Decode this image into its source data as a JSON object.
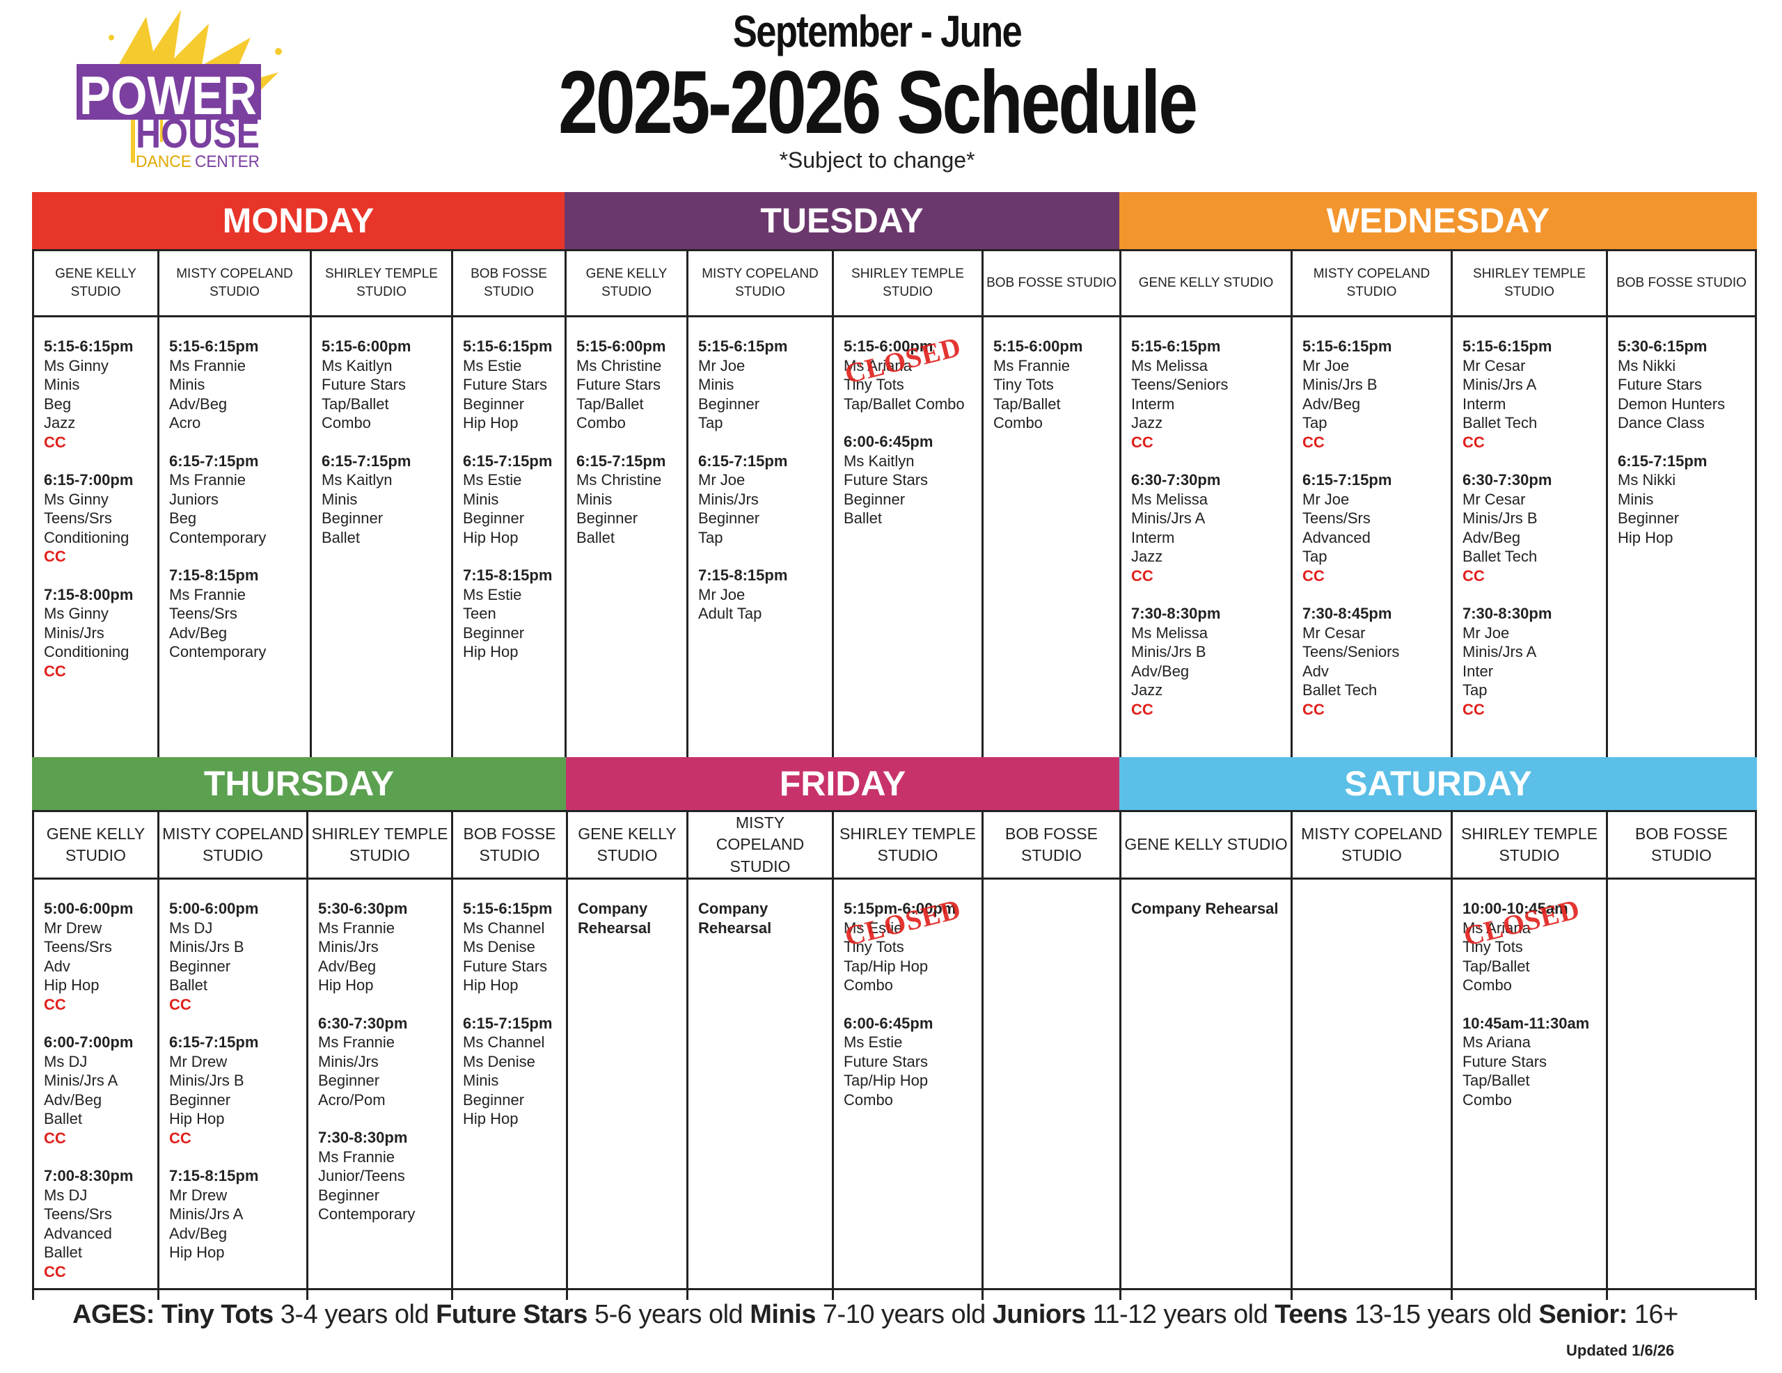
{
  "logo": {
    "line1": "POWER",
    "line2": "HOUSE",
    "line3": "DANCE CENTER",
    "colors": {
      "purple": "#7b3fa0",
      "yellow": "#f5c518"
    }
  },
  "header": {
    "season": "September - June",
    "title": "2025-2026 Schedule",
    "note": "*Subject to change*"
  },
  "closed_label": "CLOSED",
  "days": [
    {
      "name": "MONDAY",
      "color": "#e8352a",
      "row": 1,
      "studios": [
        {
          "header": "GENE KELLY STUDIO",
          "classes": [
            {
              "time": "5:15-6:15pm",
              "lines": [
                "Ms Ginny",
                "Minis",
                "Beg",
                "Jazz"
              ],
              "cc": true
            },
            {
              "time": "6:15-7:00pm",
              "lines": [
                "Ms Ginny",
                "Teens/Srs",
                "Conditioning"
              ],
              "cc": true
            },
            {
              "time": "7:15-8:00pm",
              "lines": [
                "Ms Ginny",
                "Minis/Jrs",
                "Conditioning"
              ],
              "cc": true
            }
          ]
        },
        {
          "header": "MISTY COPELAND STUDIO",
          "classes": [
            {
              "time": "5:15-6:15pm",
              "lines": [
                "Ms Frannie",
                "Minis",
                "Adv/Beg",
                "Acro"
              ]
            },
            {
              "time": "6:15-7:15pm",
              "lines": [
                "Ms Frannie",
                "Juniors",
                "Beg",
                "Contemporary"
              ]
            },
            {
              "time": "7:15-8:15pm",
              "lines": [
                "Ms Frannie",
                "Teens/Srs",
                "Adv/Beg",
                "Contemporary"
              ]
            }
          ]
        },
        {
          "header": "SHIRLEY TEMPLE STUDIO",
          "classes": [
            {
              "time": "5:15-6:00pm",
              "lines": [
                "Ms Kaitlyn",
                "Future Stars",
                "Tap/Ballet",
                "Combo"
              ]
            },
            {
              "time": "6:15-7:15pm",
              "lines": [
                "Ms Kaitlyn",
                "Minis",
                "Beginner",
                "Ballet"
              ]
            }
          ]
        },
        {
          "header": "BOB FOSSE STUDIO",
          "classes": [
            {
              "time": "5:15-6:15pm",
              "lines": [
                "Ms Estie",
                "Future Stars",
                "Beginner",
                "Hip Hop"
              ]
            },
            {
              "time": "6:15-7:15pm",
              "lines": [
                "Ms Estie",
                "Minis",
                "Beginner",
                "Hip Hop"
              ]
            },
            {
              "time": "7:15-8:15pm",
              "lines": [
                "Ms Estie",
                "Teen",
                "Beginner",
                "Hip Hop"
              ]
            }
          ]
        }
      ]
    },
    {
      "name": "TUESDAY",
      "color": "#6b386d",
      "row": 1,
      "studios": [
        {
          "header": "GENE KELLY STUDIO",
          "classes": [
            {
              "time": "5:15-6:00pm",
              "lines": [
                "Ms Christine",
                "Future Stars",
                "Tap/Ballet",
                "Combo"
              ]
            },
            {
              "time": "6:15-7:15pm",
              "lines": [
                "Ms Christine",
                "Minis",
                "Beginner",
                "Ballet"
              ]
            }
          ]
        },
        {
          "header": "MISTY COPELAND STUDIO",
          "classes": [
            {
              "time": "5:15-6:15pm",
              "lines": [
                "Mr Joe",
                "Minis",
                "Beginner",
                "Tap"
              ]
            },
            {
              "time": "6:15-7:15pm",
              "lines": [
                "Mr Joe",
                "Minis/Jrs",
                "Beginner",
                "Tap"
              ]
            },
            {
              "time": "7:15-8:15pm",
              "lines": [
                "Mr Joe",
                "Adult Tap"
              ]
            }
          ]
        },
        {
          "header": "SHIRLEY TEMPLE STUDIO",
          "classes": [
            {
              "time": "5:15-6:00pm",
              "lines": [
                "Ms Ariana",
                "Tiny Tots",
                "Tap/Ballet Combo"
              ],
              "closed": true
            },
            {
              "time": "6:00-6:45pm",
              "lines": [
                "Ms Kaitlyn",
                "Future Stars",
                "Beginner",
                "Ballet"
              ]
            }
          ]
        },
        {
          "header": "BOB FOSSE STUDIO",
          "classes": [
            {
              "time": "5:15-6:00pm",
              "lines": [
                "Ms Frannie",
                "Tiny Tots",
                "Tap/Ballet Combo"
              ]
            }
          ]
        }
      ]
    },
    {
      "name": "WEDNESDAY",
      "color": "#f3952d",
      "row": 1,
      "studios": [
        {
          "header": "GENE KELLY STUDIO",
          "classes": [
            {
              "time": "5:15-6:15pm",
              "lines": [
                "Ms Melissa",
                "Teens/Seniors",
                "Interm",
                "Jazz"
              ],
              "cc": true
            },
            {
              "time": "6:30-7:30pm",
              "lines": [
                "Ms Melissa",
                "Minis/Jrs A",
                "Interm",
                "Jazz"
              ],
              "cc": true
            },
            {
              "time": "7:30-8:30pm",
              "lines": [
                "Ms Melissa",
                "Minis/Jrs B",
                "Adv/Beg",
                "Jazz"
              ],
              "cc": true
            }
          ]
        },
        {
          "header": "MISTY COPELAND STUDIO",
          "classes": [
            {
              "time": "5:15-6:15pm",
              "lines": [
                "Mr Joe",
                "Minis/Jrs B",
                "Adv/Beg",
                "Tap"
              ],
              "cc": true
            },
            {
              "time": "6:15-7:15pm",
              "lines": [
                "Mr Joe",
                "Teens/Srs",
                "Advanced",
                "Tap"
              ],
              "cc": true
            },
            {
              "time": "7:30-8:45pm",
              "lines": [
                "Mr Cesar",
                "Teens/Seniors",
                "Adv",
                "Ballet Tech"
              ],
              "cc": true
            }
          ]
        },
        {
          "header": "SHIRLEY TEMPLE STUDIO",
          "classes": [
            {
              "time": "5:15-6:15pm",
              "lines": [
                "Mr Cesar",
                "Minis/Jrs A",
                "Interm",
                "Ballet Tech"
              ],
              "cc": true
            },
            {
              "time": "6:30-7:30pm",
              "lines": [
                "Mr Cesar",
                "Minis/Jrs B",
                "Adv/Beg",
                "Ballet Tech"
              ],
              "cc": true
            },
            {
              "time": "7:30-8:30pm",
              "lines": [
                "Mr Joe",
                "Minis/Jrs A",
                "Inter",
                "Tap"
              ],
              "cc": true
            }
          ]
        },
        {
          "header": "BOB FOSSE STUDIO",
          "classes": [
            {
              "time": "5:30-6:15pm",
              "lines": [
                "Ms Nikki",
                "Future Stars",
                "Demon Hunters",
                "Dance Class"
              ]
            },
            {
              "time": "6:15-7:15pm",
              "lines": [
                "Ms Nikki",
                "Minis",
                "Beginner",
                "Hip Hop"
              ]
            }
          ]
        }
      ]
    },
    {
      "name": "THURSDAY",
      "color": "#5ba150",
      "row": 2,
      "studios": [
        {
          "header": "GENE KELLY STUDIO",
          "classes": [
            {
              "time": "5:00-6:00pm",
              "lines": [
                "Mr Drew",
                "Teens/Srs",
                "Adv",
                "Hip Hop"
              ],
              "cc": true
            },
            {
              "time": "6:00-7:00pm",
              "lines": [
                "Ms DJ",
                "Minis/Jrs A",
                "Adv/Beg",
                "Ballet"
              ],
              "cc": true
            },
            {
              "time": "7:00-8:30pm",
              "lines": [
                "Ms DJ",
                "Teens/Srs",
                "Advanced",
                "Ballet"
              ],
              "cc": true
            }
          ]
        },
        {
          "header": "MISTY COPELAND STUDIO",
          "classes": [
            {
              "time": "5:00-6:00pm",
              "lines": [
                "Ms DJ",
                "Minis/Jrs B",
                "Beginner",
                "Ballet"
              ],
              "cc": true
            },
            {
              "time": "6:15-7:15pm",
              "lines": [
                "Mr Drew",
                "Minis/Jrs B",
                "Beginner",
                "Hip Hop"
              ],
              "cc": true
            },
            {
              "time": "7:15-8:15pm",
              "lines": [
                "Mr Drew",
                "Minis/Jrs A",
                "Adv/Beg",
                "Hip Hop"
              ]
            }
          ]
        },
        {
          "header": "SHIRLEY TEMPLE STUDIO",
          "classes": [
            {
              "time": "5:30-6:30pm",
              "lines": [
                "Ms Frannie",
                "Minis/Jrs",
                "Adv/Beg",
                "Hip Hop"
              ]
            },
            {
              "time": "6:30-7:30pm",
              "lines": [
                "Ms Frannie",
                "Minis/Jrs",
                "Beginner",
                "Acro/Pom"
              ]
            },
            {
              "time": "7:30-8:30pm",
              "lines": [
                "Ms Frannie",
                "Junior/Teens",
                "Beginner",
                "Contemporary"
              ]
            }
          ]
        },
        {
          "header": "BOB FOSSE STUDIO",
          "classes": [
            {
              "time": "5:15-6:15pm",
              "lines": [
                "Ms Channel",
                "Ms Denise",
                "Future Stars",
                "Hip Hop"
              ]
            },
            {
              "time": "6:15-7:15pm",
              "lines": [
                "Ms Channel",
                "Ms Denise",
                "Minis",
                "Beginner",
                "Hip Hop"
              ]
            }
          ]
        }
      ]
    },
    {
      "name": "FRIDAY",
      "color": "#c8326a",
      "row": 2,
      "studios": [
        {
          "header": "GENE KELLY STUDIO",
          "classes": [
            {
              "title": "Company Rehearsal"
            }
          ]
        },
        {
          "header": "MISTY COPELAND STUDIO",
          "classes": [
            {
              "title": "Company Rehearsal"
            }
          ]
        },
        {
          "header": "SHIRLEY TEMPLE STUDIO",
          "classes": [
            {
              "time": "5:15pm-6:00pm",
              "lines": [
                "Ms Estie",
                "Tiny Tots",
                "Tap/Hip Hop",
                "Combo"
              ],
              "closed": true
            },
            {
              "time": "6:00-6:45pm",
              "lines": [
                "Ms Estie",
                "Future Stars",
                "Tap/Hip Hop",
                "Combo"
              ]
            }
          ]
        },
        {
          "header": "BOB FOSSE STUDIO",
          "classes": []
        }
      ]
    },
    {
      "name": "SATURDAY",
      "color": "#5bbfe8",
      "row": 2,
      "studios": [
        {
          "header": "GENE KELLY STUDIO",
          "classes": [
            {
              "title": "Company Rehearsal"
            }
          ]
        },
        {
          "header": "MISTY COPELAND STUDIO",
          "classes": []
        },
        {
          "header": "SHIRLEY TEMPLE STUDIO",
          "classes": [
            {
              "time": "10:00-10:45am",
              "lines": [
                "Ms Ariana",
                "Tiny Tots",
                "Tap/Ballet",
                "Combo"
              ],
              "closed": true
            },
            {
              "time": "10:45am-11:30am",
              "lines": [
                "Ms Ariana",
                "Future Stars",
                "Tap/Ballet",
                "Combo"
              ]
            }
          ]
        },
        {
          "header": "BOB FOSSE STUDIO",
          "classes": []
        }
      ]
    }
  ],
  "cc_label": "CC",
  "ages": {
    "label": "AGES:",
    "groups": [
      {
        "name": "Tiny Tots",
        "range": "3-4 years old"
      },
      {
        "name": "Future Stars",
        "range": "5-6 years old"
      },
      {
        "name": "Minis",
        "range": "7-10 years old"
      },
      {
        "name": "Juniors",
        "range": "11-12 years old"
      },
      {
        "name": "Teens",
        "range": "13-15 years old"
      },
      {
        "name": "Senior:",
        "range": "16+"
      }
    ]
  },
  "updated": "Updated 1/6/26"
}
